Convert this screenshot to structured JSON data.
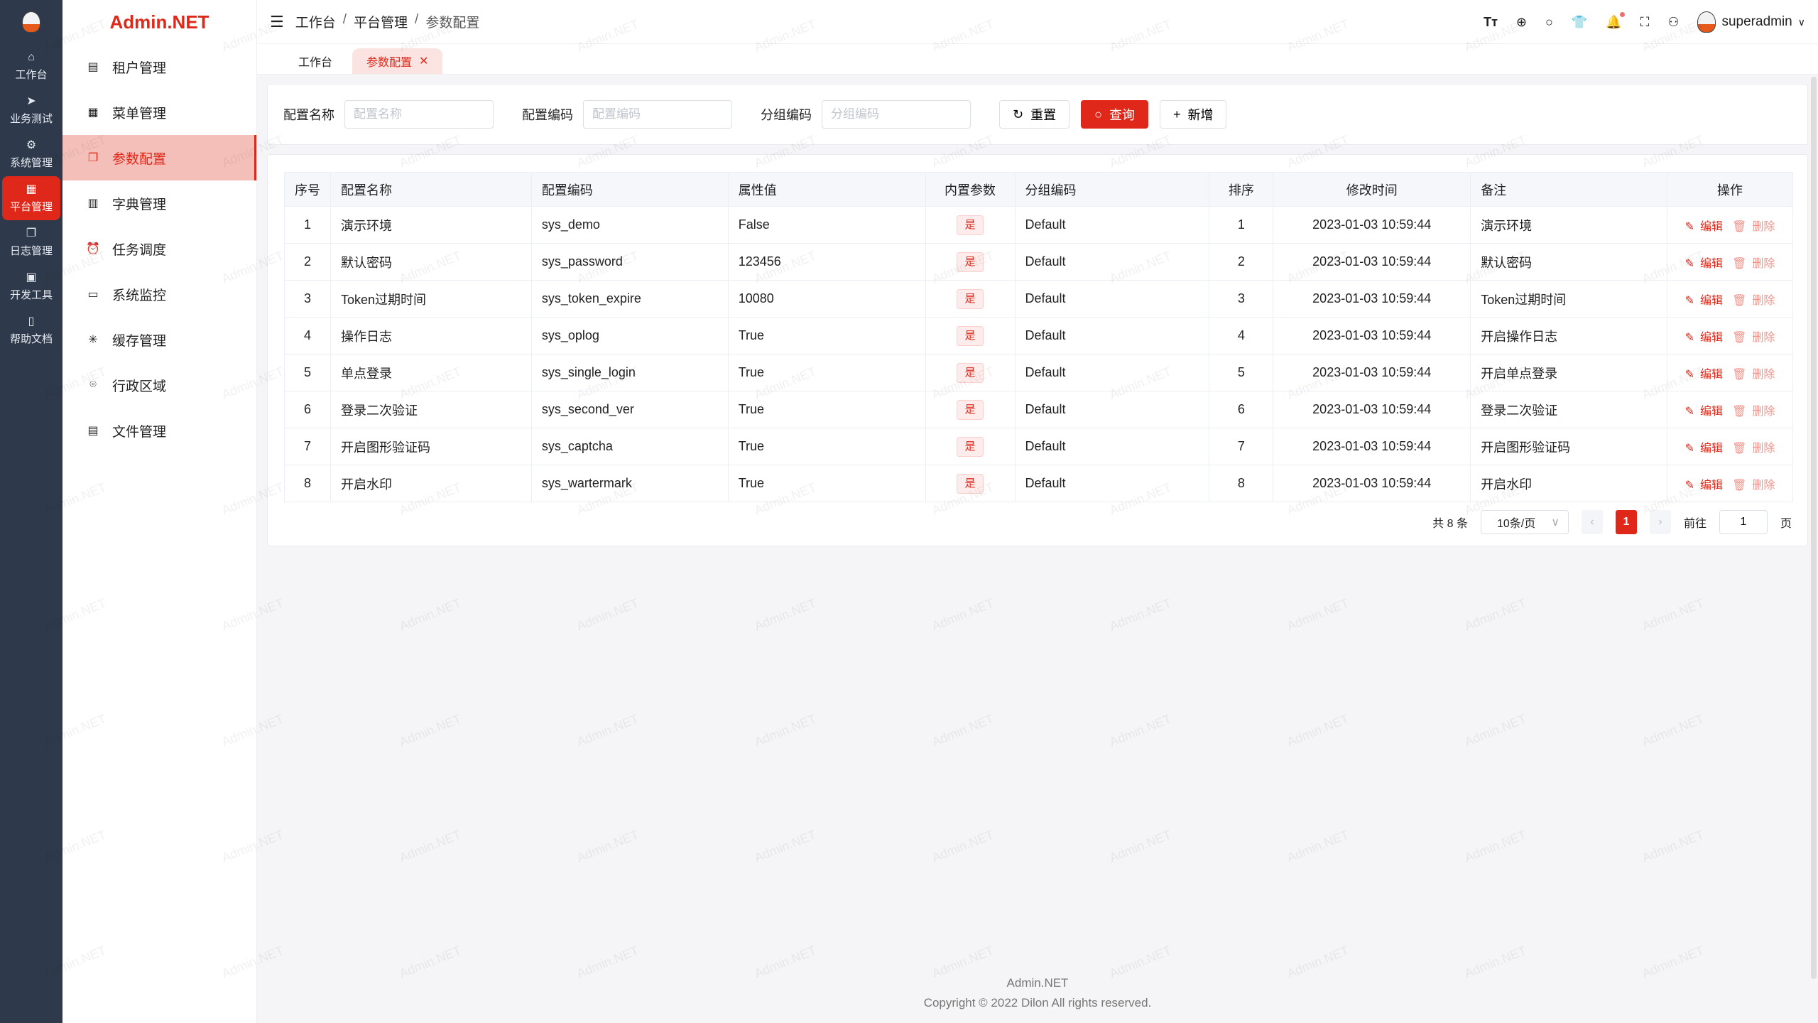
{
  "brand": "Admin.NET",
  "watermark": "Admin.NET",
  "accent": "#e0281a",
  "rail": [
    {
      "icon": "home-icon",
      "glyph": "⌂",
      "label": "工作台"
    },
    {
      "icon": "send-icon",
      "glyph": "➤",
      "label": "业务测试"
    },
    {
      "icon": "gear-icon",
      "glyph": "⚙",
      "label": "系统管理"
    },
    {
      "icon": "grid-icon",
      "glyph": "▦",
      "label": "平台管理",
      "active": true
    },
    {
      "icon": "copy-icon",
      "glyph": "❐",
      "label": "日志管理"
    },
    {
      "icon": "chip-icon",
      "glyph": "▣",
      "label": "开发工具"
    },
    {
      "icon": "notebook-icon",
      "glyph": "▯",
      "label": "帮助文档"
    }
  ],
  "menu": [
    {
      "icon": "building-icon",
      "glyph": "▤",
      "label": "租户管理"
    },
    {
      "icon": "grid-icon",
      "glyph": "▦",
      "label": "菜单管理"
    },
    {
      "icon": "copy-icon",
      "glyph": "❐",
      "label": "参数配置",
      "active": true
    },
    {
      "icon": "book-icon",
      "glyph": "▥",
      "label": "字典管理"
    },
    {
      "icon": "alarm-icon",
      "glyph": "⏰",
      "label": "任务调度"
    },
    {
      "icon": "monitor-icon",
      "glyph": "▭",
      "label": "系统监控"
    },
    {
      "icon": "loading-icon",
      "glyph": "✳",
      "label": "缓存管理"
    },
    {
      "icon": "location-icon",
      "glyph": "⌾",
      "label": "行政区域"
    },
    {
      "icon": "document-icon",
      "glyph": "▤",
      "label": "文件管理"
    }
  ],
  "breadcrumb": [
    "工作台",
    "平台管理",
    "参数配置"
  ],
  "user": "superadmin",
  "tabs": [
    {
      "label": "工作台"
    },
    {
      "label": "参数配置",
      "active": true
    }
  ],
  "search": {
    "fields": [
      {
        "label": "配置名称",
        "placeholder": "配置名称"
      },
      {
        "label": "配置编码",
        "placeholder": "配置编码"
      },
      {
        "label": "分组编码",
        "placeholder": "分组编码"
      }
    ],
    "reset": "重置",
    "query": "查询",
    "add": "新增"
  },
  "table": {
    "columns": [
      "序号",
      "配置名称",
      "配置编码",
      "属性值",
      "内置参数",
      "分组编码",
      "排序",
      "修改时间",
      "备注",
      "操作"
    ],
    "edit": "编辑",
    "delete": "删除",
    "rows": [
      [
        "1",
        "演示环境",
        "sys_demo",
        "False",
        "是",
        "Default",
        "1",
        "2023-01-03 10:59:44",
        "演示环境"
      ],
      [
        "2",
        "默认密码",
        "sys_password",
        "123456",
        "是",
        "Default",
        "2",
        "2023-01-03 10:59:44",
        "默认密码"
      ],
      [
        "3",
        "Token过期时间",
        "sys_token_expire",
        "10080",
        "是",
        "Default",
        "3",
        "2023-01-03 10:59:44",
        "Token过期时间"
      ],
      [
        "4",
        "操作日志",
        "sys_oplog",
        "True",
        "是",
        "Default",
        "4",
        "2023-01-03 10:59:44",
        "开启操作日志"
      ],
      [
        "5",
        "单点登录",
        "sys_single_login",
        "True",
        "是",
        "Default",
        "5",
        "2023-01-03 10:59:44",
        "开启单点登录"
      ],
      [
        "6",
        "登录二次验证",
        "sys_second_ver",
        "True",
        "是",
        "Default",
        "6",
        "2023-01-03 10:59:44",
        "登录二次验证"
      ],
      [
        "7",
        "开启图形验证码",
        "sys_captcha",
        "True",
        "是",
        "Default",
        "7",
        "2023-01-03 10:59:44",
        "开启图形验证码"
      ],
      [
        "8",
        "开启水印",
        "sys_wartermark",
        "True",
        "是",
        "Default",
        "8",
        "2023-01-03 10:59:44",
        "开启水印"
      ]
    ]
  },
  "pager": {
    "total": "共 8 条",
    "size": "10条/页",
    "current": "1",
    "goto": "前往",
    "goto_value": "1",
    "page_unit": "页"
  },
  "footer": {
    "line1": "Admin.NET",
    "line2": "Copyright © 2022 Dilon All rights reserved."
  }
}
